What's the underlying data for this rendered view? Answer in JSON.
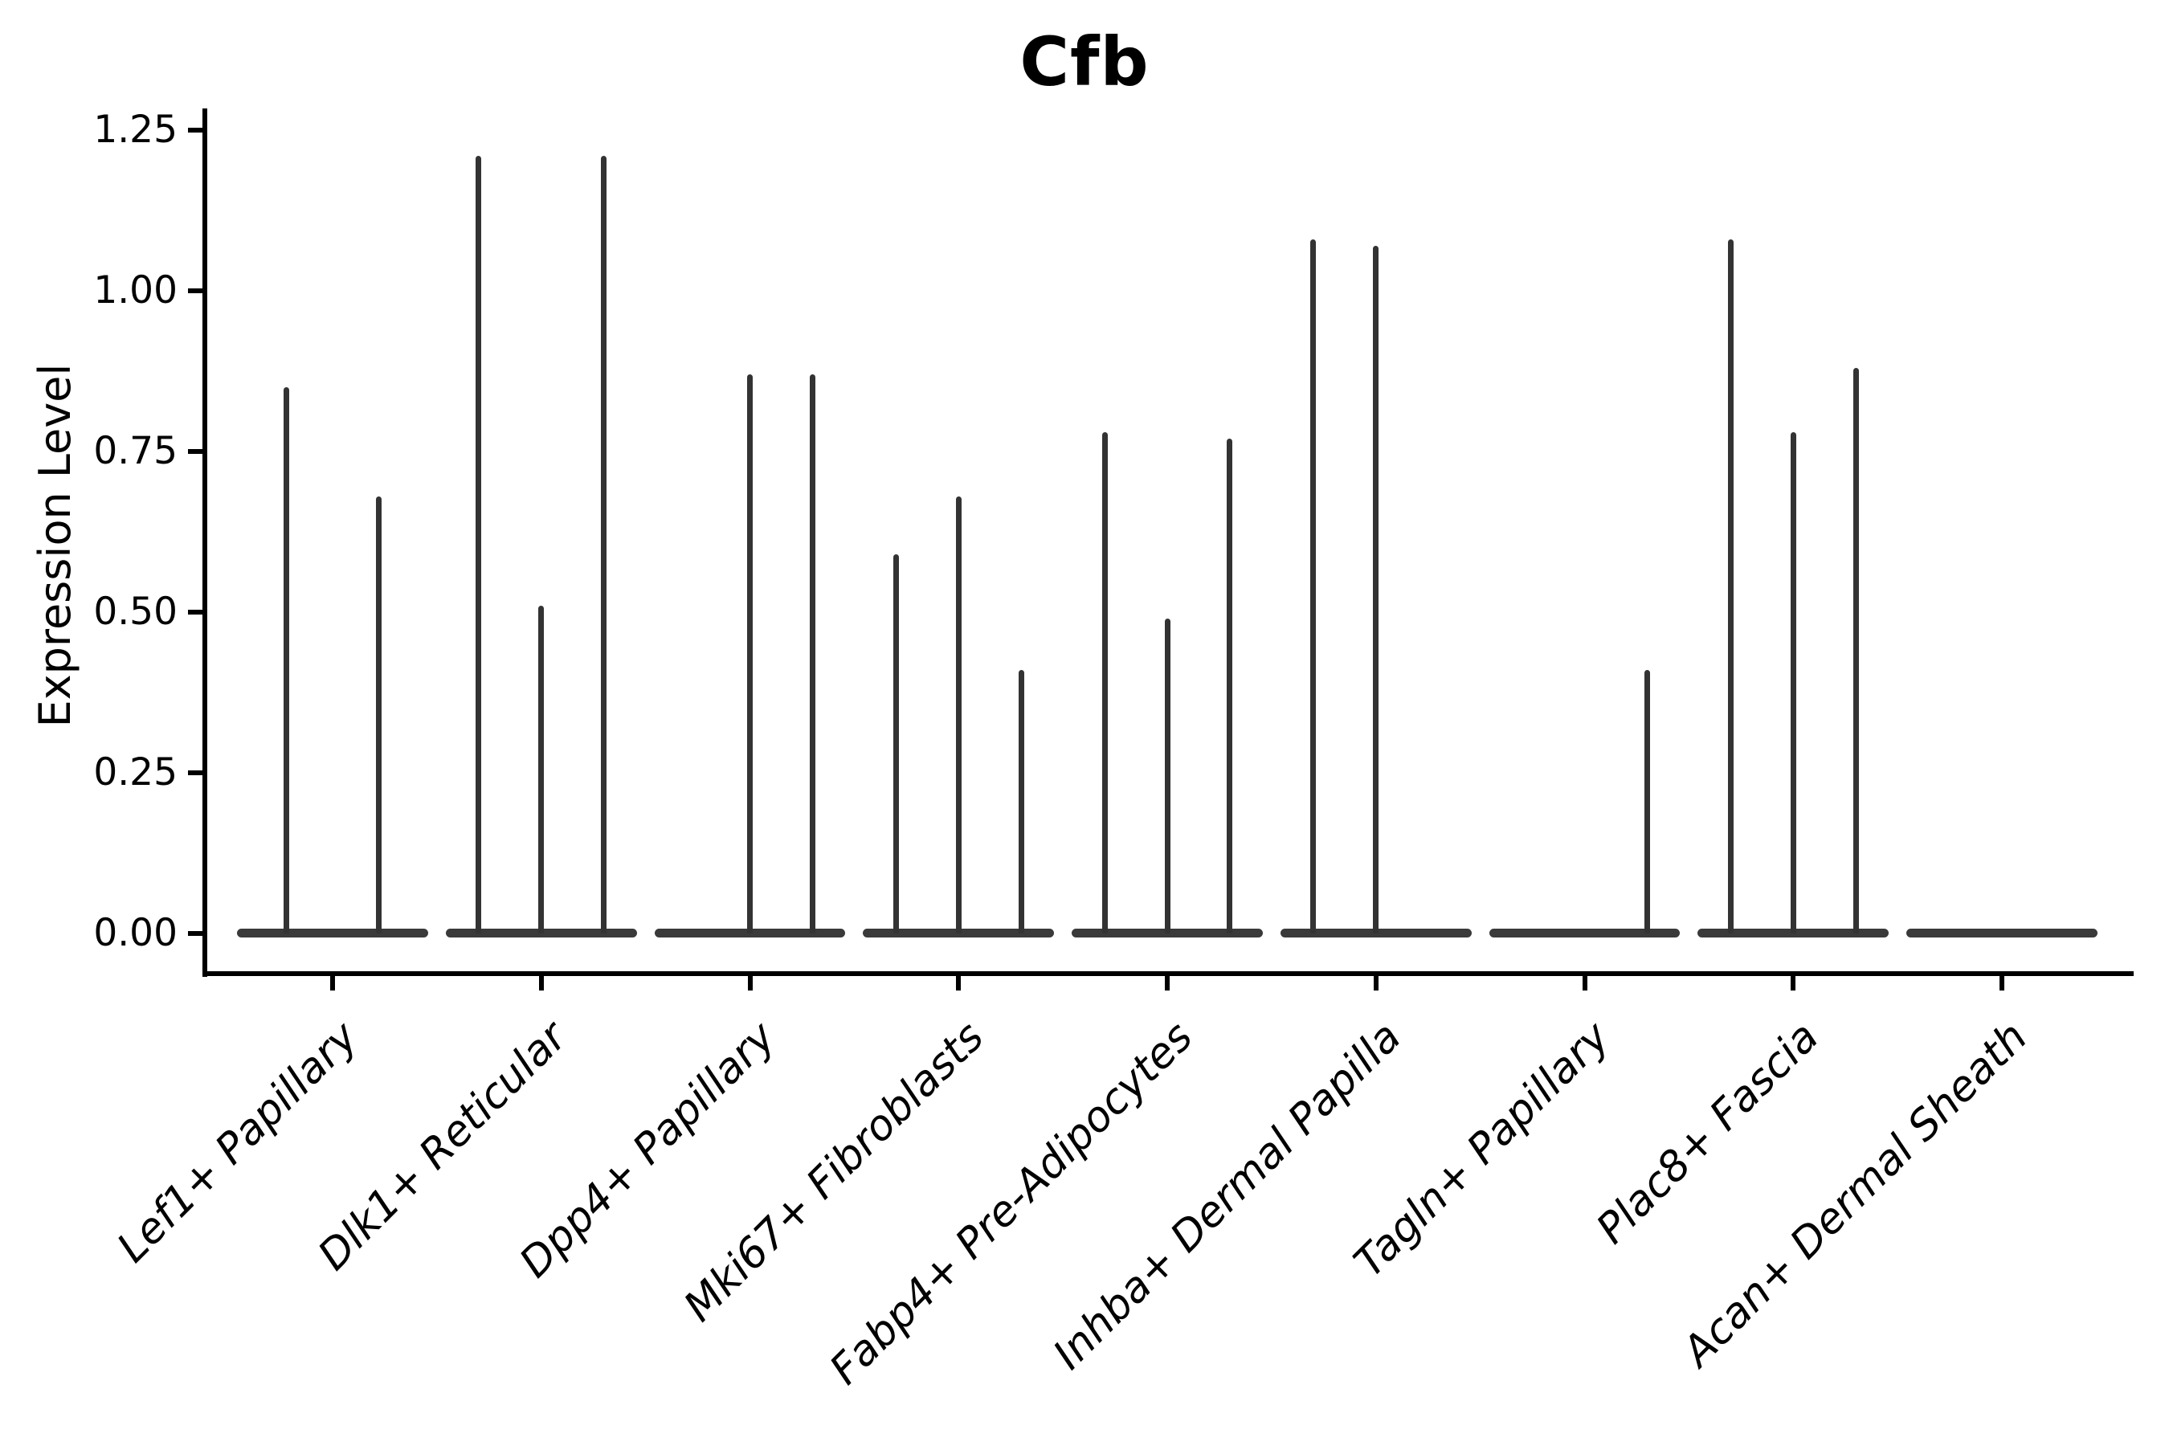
{
  "title": "Cfb",
  "ylabel": "Expression Level",
  "chart_data": {
    "type": "violin",
    "title": "Cfb",
    "xlabel": "",
    "ylabel": "Expression Level",
    "grid": false,
    "legend": "none",
    "ylim": [
      -0.06,
      1.284
    ],
    "xlim": [
      -0.6045,
      8.6275
    ],
    "yticks": [
      {
        "value": 0.0,
        "label": "0.00"
      },
      {
        "value": 0.25,
        "label": "0.25"
      },
      {
        "value": 0.5,
        "label": "0.50"
      },
      {
        "value": 0.75,
        "label": "0.75"
      },
      {
        "value": 1.0,
        "label": "1.00"
      },
      {
        "value": 1.25,
        "label": "1.25"
      }
    ],
    "categories": [
      "Lef1+ Papillary",
      "Dlk1+ Reticular",
      "Dpp4+ Papillary",
      "Mki67+ Fibroblasts",
      "Fabp4+ Pre-Adipocytes",
      "Inhba+ Dermal Papilla",
      "Tagln+ Papillary",
      "Plac8+ Fascia",
      "Acan+ Dermal Sheath"
    ],
    "groups": [
      {
        "label": "Lef1+ Papillary",
        "violins": [
          {
            "pos": -0.223,
            "value": 0.85
          },
          {
            "pos": 0.223,
            "value": 0.68
          }
        ]
      },
      {
        "label": "Dlk1+ Reticular",
        "violins": [
          {
            "pos": -0.3,
            "value": 1.21
          },
          {
            "pos": 0.0,
            "value": 0.51
          },
          {
            "pos": 0.3,
            "value": 1.21
          }
        ]
      },
      {
        "label": "Dpp4+ Papillary",
        "violins": [
          {
            "pos": 0.0,
            "value": 0.87
          },
          {
            "pos": 0.3,
            "value": 0.87
          }
        ]
      },
      {
        "label": "Mki67+ Fibroblasts",
        "violins": [
          {
            "pos": -0.3,
            "value": 0.59
          },
          {
            "pos": 0.0,
            "value": 0.68
          },
          {
            "pos": 0.3,
            "value": 0.41
          }
        ]
      },
      {
        "label": "Fabp4+ Pre-Adipocytes",
        "violins": [
          {
            "pos": -0.3,
            "value": 0.78
          },
          {
            "pos": 0.0,
            "value": 0.49
          },
          {
            "pos": 0.3,
            "value": 0.77
          }
        ]
      },
      {
        "label": "Inhba+ Dermal Papilla",
        "violins": [
          {
            "pos": -0.3,
            "value": 1.08
          },
          {
            "pos": 0.0,
            "value": 1.07
          }
        ]
      },
      {
        "label": "Tagln+ Papillary",
        "violins": [
          {
            "pos": 0.3,
            "value": 0.41
          }
        ]
      },
      {
        "label": "Plac8+ Fascia",
        "violins": [
          {
            "pos": -0.3,
            "value": 1.08
          },
          {
            "pos": 0.0,
            "value": 0.78
          },
          {
            "pos": 0.3,
            "value": 0.88
          }
        ]
      },
      {
        "label": "Acan+ Dermal Sheath",
        "violins": []
      }
    ],
    "base_halfwidth": 0.458,
    "colors": {
      "violin": "#333333",
      "violin_base": "#3a3a3a",
      "axis": "#000000",
      "text": "#000000",
      "background": "#ffffff"
    }
  }
}
